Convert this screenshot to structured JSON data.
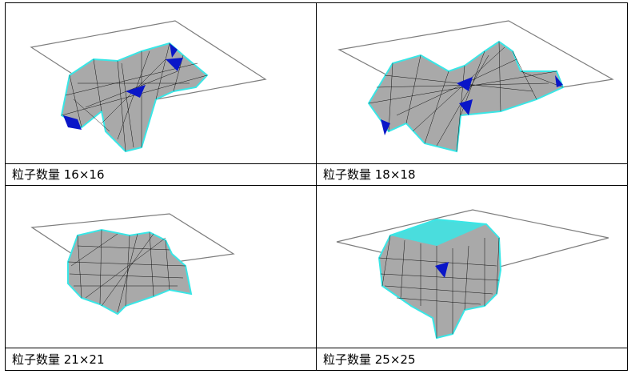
{
  "panels": [
    {
      "caption": "粒子数量 16×16"
    },
    {
      "caption": "粒子数量 18×18"
    },
    {
      "caption": "粒子数量 21×21"
    },
    {
      "caption": "粒子数量 25×25"
    }
  ],
  "colors": {
    "mesh_fill": "#a9a9a9",
    "mesh_edge": "#111111",
    "highlight": "#39e6e6",
    "shadow_blue": "#0a16c8",
    "table_outline": "#7d7d7d"
  }
}
